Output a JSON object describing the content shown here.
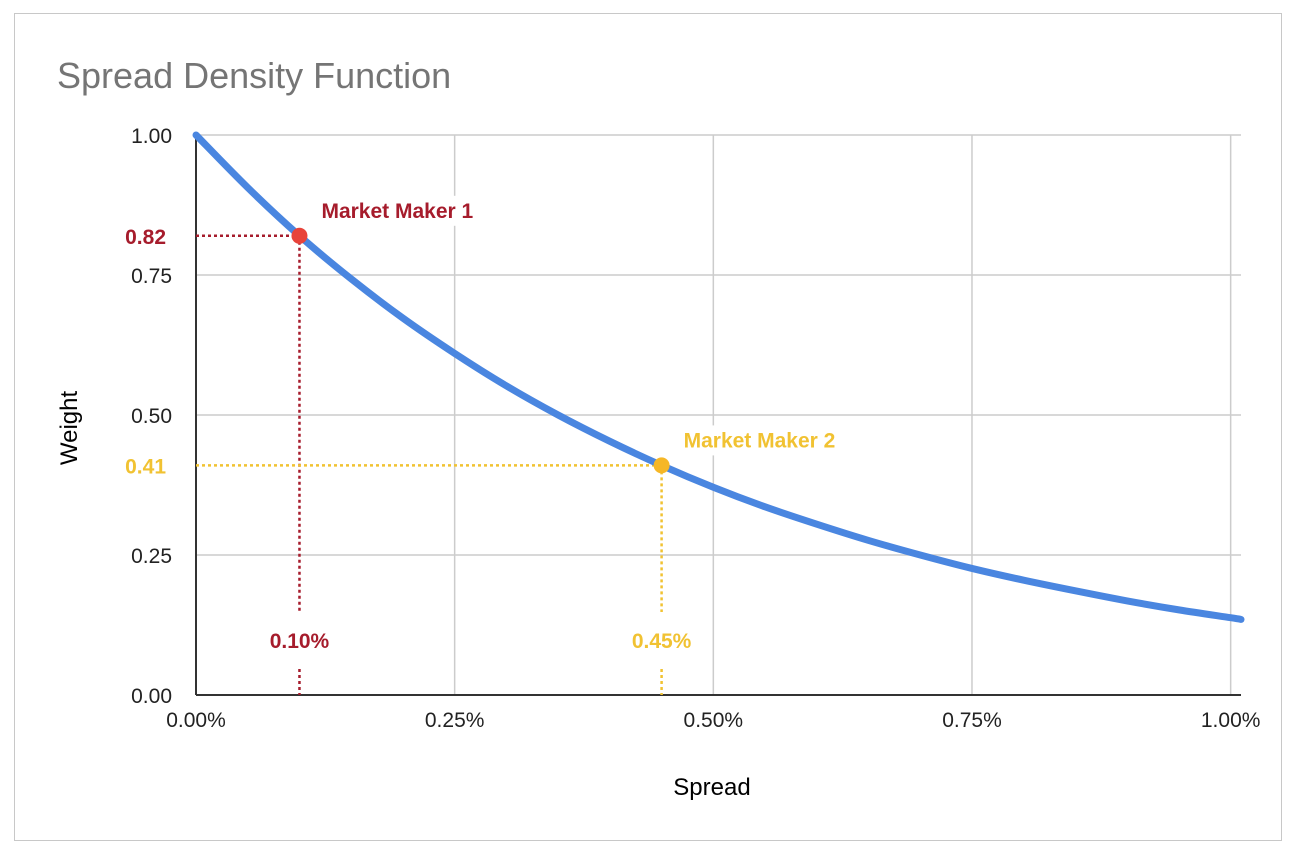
{
  "chart_data": {
    "type": "line",
    "title": "Spread Density Function",
    "xlabel": "Spread",
    "ylabel": "Weight",
    "xlim": [
      0,
      1.01
    ],
    "ylim": [
      0,
      1
    ],
    "x_ticks": [
      {
        "value": 0,
        "label": "0.00%"
      },
      {
        "value": 0.25,
        "label": "0.25%"
      },
      {
        "value": 0.5,
        "label": "0.50%"
      },
      {
        "value": 0.75,
        "label": "0.75%"
      },
      {
        "value": 1.0,
        "label": "1.00%"
      }
    ],
    "y_ticks": [
      {
        "value": 0,
        "label": "0.00"
      },
      {
        "value": 0.25,
        "label": "0.25"
      },
      {
        "value": 0.5,
        "label": "0.50"
      },
      {
        "value": 0.75,
        "label": "0.75"
      },
      {
        "value": 1.0,
        "label": "1.00"
      }
    ],
    "grid": true,
    "series": [
      {
        "color": "#4a86e0",
        "x": [
          0,
          0.05,
          0.1,
          0.15,
          0.2,
          0.25,
          0.3,
          0.35,
          0.4,
          0.45,
          0.5,
          0.55,
          0.6,
          0.65,
          0.7,
          0.75,
          0.8,
          0.85,
          0.9,
          0.95,
          1.0,
          1.01
        ],
        "y": [
          1.0,
          0.906,
          0.82,
          0.743,
          0.673,
          0.61,
          0.552,
          0.5,
          0.453,
          0.41,
          0.371,
          0.336,
          0.305,
          0.276,
          0.25,
          0.226,
          0.205,
          0.186,
          0.168,
          0.152,
          0.138,
          0.135
        ]
      }
    ],
    "annotations": [
      {
        "name": "Market Maker 1",
        "x": 0.1,
        "y": 0.82,
        "x_label": "0.10%",
        "y_label": "0.82",
        "color": "#a61c2c",
        "point_color": "#e8433a"
      },
      {
        "name": "Market Maker 2",
        "x": 0.45,
        "y": 0.41,
        "x_label": "0.45%",
        "y_label": "0.41",
        "color": "#f1c232",
        "point_color": "#f6b726"
      }
    ]
  }
}
